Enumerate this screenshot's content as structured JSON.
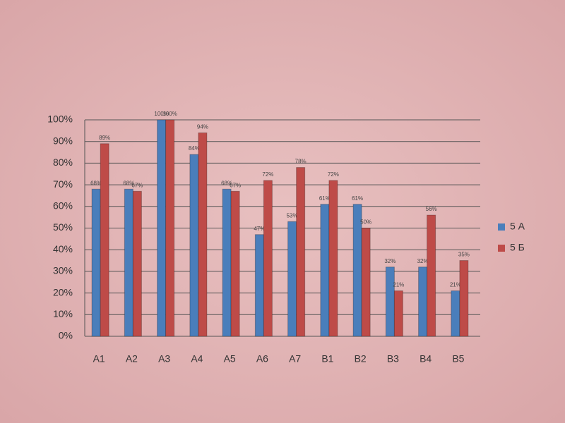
{
  "chart_data": {
    "type": "bar",
    "categories": [
      "A1",
      "A2",
      "A3",
      "A4",
      "A5",
      "A6",
      "A7",
      "B1",
      "B2",
      "B3",
      "B4",
      "B5"
    ],
    "series": [
      {
        "name": "5 А",
        "color": "#4a7ebb",
        "values": [
          68,
          68,
          100,
          84,
          68,
          47,
          53,
          61,
          61,
          32,
          32,
          21
        ],
        "value_labels": [
          "68%",
          "68%",
          "100%",
          "84%",
          "68%",
          "47%",
          "53%",
          "61%",
          "61%",
          "32%",
          "32%",
          "21%"
        ]
      },
      {
        "name": "5 Б",
        "color": "#be4b48",
        "values": [
          89,
          67,
          100,
          94,
          67,
          72,
          78,
          72,
          50,
          21,
          56,
          35
        ],
        "value_labels": [
          "89%",
          "67%",
          "100%",
          "94%",
          "67%",
          "72%",
          "78%",
          "72%",
          "50%",
          "21%",
          "56%",
          "35%"
        ]
      }
    ],
    "ylim": [
      0,
      100
    ],
    "yticks": [
      {
        "value": 0,
        "label": "0%"
      },
      {
        "value": 10,
        "label": "10%"
      },
      {
        "value": 20,
        "label": "20%"
      },
      {
        "value": 30,
        "label": "30%"
      },
      {
        "value": 40,
        "label": "40%"
      },
      {
        "value": 50,
        "label": "50%"
      },
      {
        "value": 60,
        "label": "60%"
      },
      {
        "value": 70,
        "label": "70%"
      },
      {
        "value": 80,
        "label": "80%"
      },
      {
        "value": 90,
        "label": "90%"
      },
      {
        "value": 100,
        "label": "100%"
      }
    ],
    "grid": true,
    "legend": "right"
  }
}
